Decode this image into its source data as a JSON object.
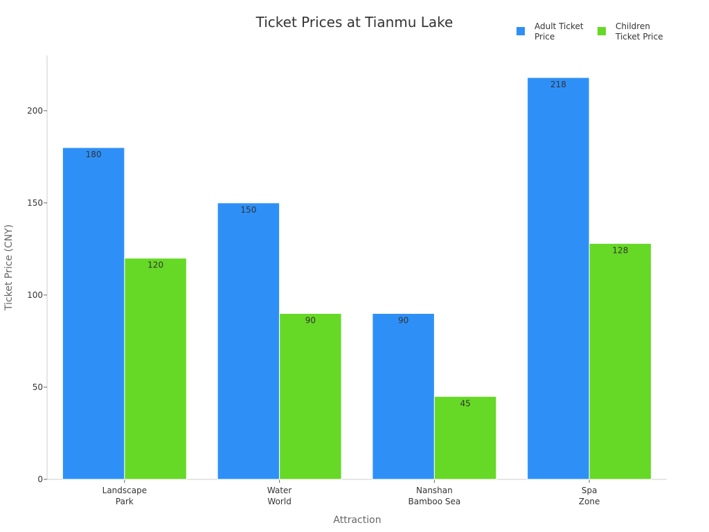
{
  "chart_data": {
    "type": "bar",
    "title": "Ticket Prices at Tianmu Lake",
    "xlabel": "Attraction",
    "ylabel": "Ticket Price (CNY)",
    "categories": [
      [
        "Landscape",
        "Park"
      ],
      [
        "Water",
        "World"
      ],
      [
        "Nanshan",
        "Bamboo Sea"
      ],
      [
        "Spa",
        "Zone"
      ]
    ],
    "series": [
      {
        "name": [
          "Adult Ticket",
          "Price"
        ],
        "color": "#2e90f7",
        "values": [
          180,
          150,
          90,
          218
        ]
      },
      {
        "name": [
          "Children",
          "Ticket Price"
        ],
        "color": "#66d926",
        "values": [
          120,
          90,
          45,
          128
        ]
      }
    ],
    "ylim": [
      0,
      230
    ],
    "yticks": [
      0,
      50,
      100,
      150,
      200
    ],
    "grid": false,
    "legend_position": "top-right",
    "data_labels": true
  }
}
